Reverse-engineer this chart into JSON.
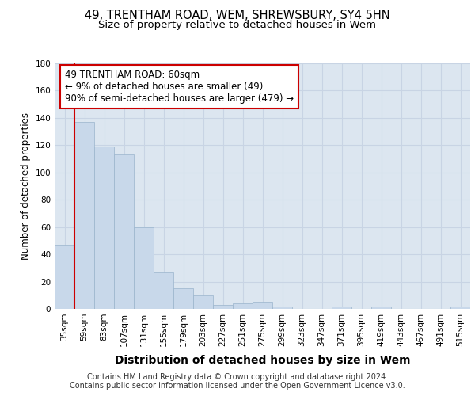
{
  "title_line1": "49, TRENTHAM ROAD, WEM, SHREWSBURY, SY4 5HN",
  "title_line2": "Size of property relative to detached houses in Wem",
  "xlabel": "Distribution of detached houses by size in Wem",
  "ylabel": "Number of detached properties",
  "categories": [
    "35sqm",
    "59sqm",
    "83sqm",
    "107sqm",
    "131sqm",
    "155sqm",
    "179sqm",
    "203sqm",
    "227sqm",
    "251sqm",
    "275sqm",
    "299sqm",
    "323sqm",
    "347sqm",
    "371sqm",
    "395sqm",
    "419sqm",
    "443sqm",
    "467sqm",
    "491sqm",
    "515sqm"
  ],
  "values": [
    47,
    137,
    119,
    113,
    60,
    27,
    15,
    10,
    3,
    4,
    5,
    2,
    0,
    0,
    2,
    0,
    2,
    0,
    0,
    0,
    2
  ],
  "bar_color": "#c8d8ea",
  "bar_edge_color": "#9ab4cc",
  "annotation_text": "49 TRENTHAM ROAD: 60sqm\n← 9% of detached houses are smaller (49)\n90% of semi-detached houses are larger (479) →",
  "annotation_box_color": "#ffffff",
  "annotation_box_edge": "#cc0000",
  "vline_color": "#cc0000",
  "ylim": [
    0,
    180
  ],
  "yticks": [
    0,
    20,
    40,
    60,
    80,
    100,
    120,
    140,
    160,
    180
  ],
  "grid_color": "#c8d4e4",
  "background_color": "#dce6f0",
  "footer_text": "Contains HM Land Registry data © Crown copyright and database right 2024.\nContains public sector information licensed under the Open Government Licence v3.0.",
  "title_fontsize": 10.5,
  "subtitle_fontsize": 9.5,
  "ylabel_fontsize": 8.5,
  "xlabel_fontsize": 10,
  "tick_fontsize": 7.5,
  "annotation_fontsize": 8.5,
  "footer_fontsize": 7
}
